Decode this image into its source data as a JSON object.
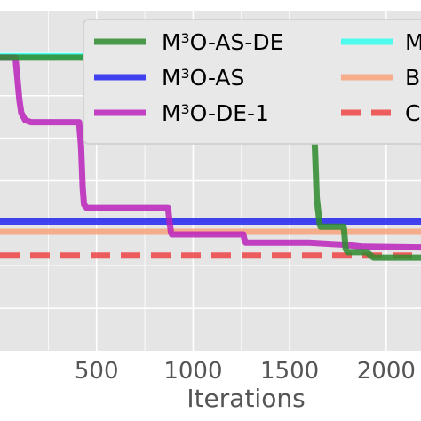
{
  "chart_data": {
    "type": "line",
    "title": "",
    "xlabel": "Iterations",
    "ylabel": "",
    "xlim": [
      0,
      2180
    ],
    "ylim": [
      0,
      1
    ],
    "x_ticks": [
      500,
      1000,
      1500,
      2000
    ],
    "grid": true,
    "legend": {
      "placement": "top-right",
      "entries": [
        {
          "name": "M³O-AS-DE",
          "color": "#2e8b2e"
        },
        {
          "name": "M³O-AS",
          "color": "#2222ee"
        },
        {
          "name": "M³O-DE-1",
          "color": "#bb22bb"
        },
        {
          "name": "M",
          "color": "#33ffee"
        },
        {
          "name": "B",
          "color": "#f7a27a"
        },
        {
          "name": "C",
          "color": "#ee4444"
        }
      ]
    },
    "series": [
      {
        "name": "M³O-AS-DE",
        "color": "#2e8b2e",
        "style": "solid",
        "points": [
          [
            0,
            0.862
          ],
          [
            530,
            0.862
          ],
          [
            560,
            0.835
          ],
          [
            580,
            0.81
          ],
          [
            600,
            0.78
          ],
          [
            620,
            0.75
          ],
          [
            660,
            0.715
          ],
          [
            700,
            0.7
          ],
          [
            760,
            0.69
          ],
          [
            900,
            0.688
          ],
          [
            1100,
            0.684
          ],
          [
            1300,
            0.672
          ],
          [
            1500,
            0.668
          ],
          [
            1625,
            0.668
          ],
          [
            1632,
            0.58
          ],
          [
            1640,
            0.45
          ],
          [
            1655,
            0.375
          ],
          [
            1660,
            0.365
          ],
          [
            1780,
            0.365
          ],
          [
            1790,
            0.3
          ],
          [
            1800,
            0.29
          ],
          [
            1900,
            0.29
          ],
          [
            1920,
            0.28
          ],
          [
            1935,
            0.274
          ],
          [
            2180,
            0.274
          ]
        ]
      },
      {
        "name": "M³O-AS",
        "color": "#2222ee",
        "style": "solid",
        "points": [
          [
            0,
            0.38
          ],
          [
            2180,
            0.38
          ]
        ]
      },
      {
        "name": "M³O-DE-1",
        "color": "#bb22bb",
        "style": "solid",
        "points": [
          [
            0,
            0.862
          ],
          [
            80,
            0.862
          ],
          [
            90,
            0.8
          ],
          [
            100,
            0.74
          ],
          [
            110,
            0.7
          ],
          [
            130,
            0.678
          ],
          [
            160,
            0.672
          ],
          [
            410,
            0.672
          ],
          [
            420,
            0.6
          ],
          [
            428,
            0.48
          ],
          [
            435,
            0.43
          ],
          [
            450,
            0.42
          ],
          [
            870,
            0.42
          ],
          [
            878,
            0.38
          ],
          [
            885,
            0.35
          ],
          [
            890,
            0.342
          ],
          [
            1260,
            0.342
          ],
          [
            1265,
            0.328
          ],
          [
            1272,
            0.318
          ],
          [
            1600,
            0.318
          ],
          [
            1780,
            0.312
          ],
          [
            1880,
            0.306
          ],
          [
            2180,
            0.304
          ]
        ]
      },
      {
        "name": "M",
        "color": "#33ffee",
        "style": "solid",
        "points": [
          [
            0,
            0.866
          ],
          [
            1400,
            0.866
          ],
          [
            1600,
            0.85
          ],
          [
            1800,
            0.836
          ],
          [
            2000,
            0.824
          ],
          [
            2180,
            0.816
          ]
        ]
      },
      {
        "name": "B",
        "color": "#f7a27a",
        "style": "solid",
        "points": [
          [
            0,
            0.35
          ],
          [
            2180,
            0.35
          ]
        ]
      },
      {
        "name": "C",
        "color": "#ee4444",
        "style": "dashed",
        "points": [
          [
            0,
            0.28
          ],
          [
            2180,
            0.28
          ]
        ]
      }
    ]
  }
}
